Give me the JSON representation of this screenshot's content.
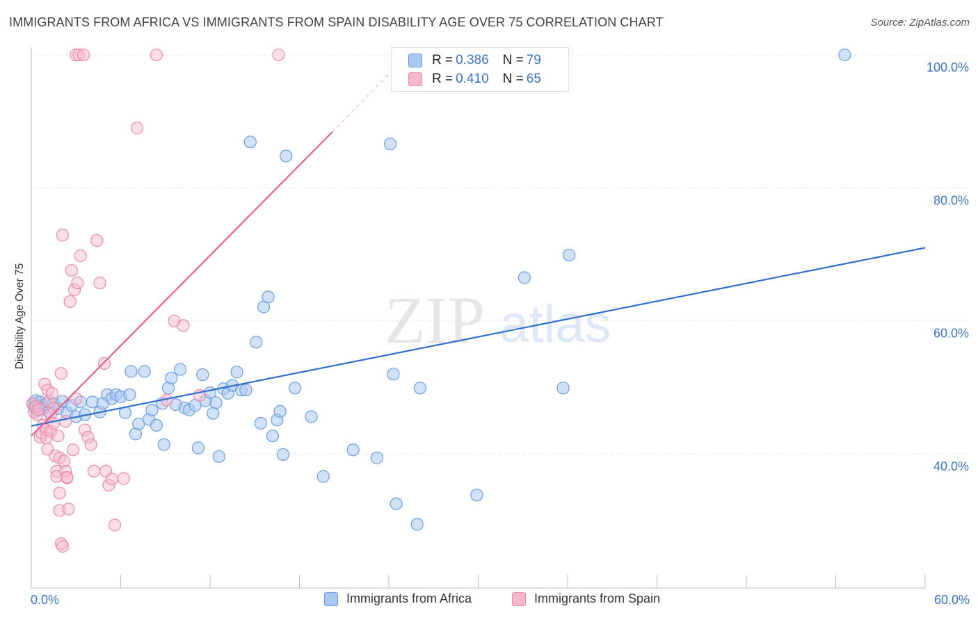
{
  "title": "IMMIGRANTS FROM AFRICA VS IMMIGRANTS FROM SPAIN DISABILITY AGE OVER 75 CORRELATION CHART",
  "source": "Source: ZipAtlas.com",
  "watermark": {
    "zip": "ZIP",
    "atlas": "atlas"
  },
  "legend": {
    "africa": {
      "r_label": "R = ",
      "r_value": "0.386",
      "n_label": "N = ",
      "n_value": "79"
    },
    "spain": {
      "r_label": "R = ",
      "r_value": "0.410",
      "n_label": "N = ",
      "n_value": "65"
    }
  },
  "bottom_legend": {
    "africa": "Immigrants from Africa",
    "spain": "Immigrants from Spain"
  },
  "x_tick_labels": {
    "min": "0.0%",
    "max": "60.0%"
  },
  "colors": {
    "africa_fill": "#a9c8f2",
    "africa_stroke": "#6a9de0",
    "africa_line": "#2c6fd0",
    "spain_fill": "#f7b8cb",
    "spain_stroke": "#ea8aa8",
    "spain_line": "#e8608c",
    "grid": "#e3e3e3",
    "axis": "#bbbbbb"
  },
  "chart_data": {
    "type": "scatter",
    "title": "IMMIGRANTS FROM AFRICA VS IMMIGRANTS FROM SPAIN DISABILITY AGE OVER 75 CORRELATION CHART",
    "xlabel": "",
    "ylabel": "Disability Age Over 75",
    "xlim": [
      0,
      60
    ],
    "ylim": [
      20,
      102
    ],
    "y_ticks": [
      {
        "value": 40,
        "label": "40.0%"
      },
      {
        "value": 60,
        "label": "60.0%"
      },
      {
        "value": 80,
        "label": "80.0%"
      },
      {
        "value": 100,
        "label": "100.0%"
      }
    ],
    "x_ticks": [
      0,
      6,
      12,
      18,
      24,
      30,
      36,
      42,
      48,
      54,
      60
    ],
    "grid": true,
    "series": [
      {
        "name": "Immigrants from Africa",
        "R": 0.386,
        "N": 79,
        "trend": {
          "x": [
            0,
            60
          ],
          "y": [
            44.2,
            71.0
          ]
        },
        "points": [
          [
            0.1,
            47.5
          ],
          [
            0.2,
            47.0
          ],
          [
            0.3,
            48.0
          ],
          [
            0.4,
            46.5
          ],
          [
            0.5,
            47.2
          ],
          [
            0.6,
            47.8
          ],
          [
            0.8,
            46.8
          ],
          [
            1.0,
            47.5
          ],
          [
            1.2,
            46.3
          ],
          [
            1.5,
            47.6
          ],
          [
            1.8,
            46.8
          ],
          [
            2.1,
            47.9
          ],
          [
            2.4,
            46.2
          ],
          [
            2.7,
            47.3
          ],
          [
            3.0,
            45.6
          ],
          [
            3.3,
            47.8
          ],
          [
            3.6,
            45.9
          ],
          [
            4.1,
            47.8
          ],
          [
            4.6,
            46.3
          ],
          [
            4.8,
            47.6
          ],
          [
            5.1,
            48.9
          ],
          [
            5.4,
            48.3
          ],
          [
            5.7,
            48.9
          ],
          [
            6.0,
            48.6
          ],
          [
            6.3,
            46.2
          ],
          [
            6.6,
            48.9
          ],
          [
            6.7,
            52.4
          ],
          [
            7.0,
            43.0
          ],
          [
            7.2,
            44.5
          ],
          [
            7.6,
            52.4
          ],
          [
            7.9,
            45.2
          ],
          [
            8.1,
            46.6
          ],
          [
            8.4,
            44.3
          ],
          [
            8.8,
            47.6
          ],
          [
            8.9,
            41.4
          ],
          [
            9.2,
            49.9
          ],
          [
            9.4,
            51.4
          ],
          [
            9.7,
            47.4
          ],
          [
            10.0,
            52.7
          ],
          [
            10.3,
            46.9
          ],
          [
            10.6,
            46.6
          ],
          [
            11.0,
            47.3
          ],
          [
            11.2,
            40.9
          ],
          [
            11.5,
            51.9
          ],
          [
            11.7,
            48.0
          ],
          [
            12.0,
            49.2
          ],
          [
            12.2,
            46.1
          ],
          [
            12.4,
            47.7
          ],
          [
            12.6,
            39.6
          ],
          [
            12.9,
            49.8
          ],
          [
            13.2,
            49.1
          ],
          [
            13.5,
            50.3
          ],
          [
            13.8,
            52.3
          ],
          [
            14.1,
            49.6
          ],
          [
            14.4,
            49.6
          ],
          [
            14.7,
            86.9
          ],
          [
            15.1,
            56.8
          ],
          [
            15.4,
            44.6
          ],
          [
            15.6,
            62.1
          ],
          [
            15.9,
            63.6
          ],
          [
            16.2,
            42.7
          ],
          [
            16.5,
            45.1
          ],
          [
            16.7,
            46.4
          ],
          [
            16.9,
            39.9
          ],
          [
            17.1,
            84.8
          ],
          [
            17.7,
            49.9
          ],
          [
            18.8,
            45.6
          ],
          [
            19.6,
            36.6
          ],
          [
            21.6,
            40.6
          ],
          [
            23.2,
            39.4
          ],
          [
            24.1,
            86.6
          ],
          [
            24.3,
            52.0
          ],
          [
            24.5,
            32.5
          ],
          [
            25.9,
            29.4
          ],
          [
            26.1,
            49.9
          ],
          [
            29.9,
            33.8
          ],
          [
            33.1,
            66.5
          ],
          [
            35.7,
            49.9
          ],
          [
            36.1,
            69.9
          ],
          [
            54.6,
            100.0
          ]
        ]
      },
      {
        "name": "Immigrants from Spain",
        "R": 0.41,
        "N": 65,
        "trend": {
          "x": [
            0,
            20.2
          ],
          "y": [
            42.7,
            88.4
          ]
        },
        "trend_dashed": {
          "x": [
            20.2,
            24.6
          ],
          "y": [
            88.4,
            98.5
          ]
        },
        "points": [
          [
            0.1,
            47.6
          ],
          [
            0.2,
            46.3
          ],
          [
            0.3,
            47.1
          ],
          [
            0.4,
            45.9
          ],
          [
            0.5,
            46.7
          ],
          [
            0.6,
            42.5
          ],
          [
            0.7,
            43.1
          ],
          [
            0.8,
            44.3
          ],
          [
            0.9,
            50.5
          ],
          [
            1.0,
            43.6
          ],
          [
            1.0,
            42.4
          ],
          [
            1.1,
            49.6
          ],
          [
            1.1,
            40.7
          ],
          [
            1.2,
            47.9
          ],
          [
            1.3,
            45.9
          ],
          [
            1.3,
            43.4
          ],
          [
            1.4,
            49.1
          ],
          [
            1.5,
            44.6
          ],
          [
            1.5,
            46.9
          ],
          [
            1.6,
            39.7
          ],
          [
            1.7,
            37.4
          ],
          [
            1.7,
            36.6
          ],
          [
            1.8,
            42.7
          ],
          [
            1.9,
            39.4
          ],
          [
            1.9,
            34.1
          ],
          [
            1.9,
            31.5
          ],
          [
            2.0,
            26.5
          ],
          [
            2.0,
            52.1
          ],
          [
            2.1,
            26.1
          ],
          [
            2.1,
            72.9
          ],
          [
            2.2,
            38.9
          ],
          [
            2.3,
            37.4
          ],
          [
            2.3,
            44.9
          ],
          [
            2.4,
            36.4
          ],
          [
            2.4,
            36.5
          ],
          [
            2.5,
            31.7
          ],
          [
            2.6,
            62.9
          ],
          [
            2.7,
            67.6
          ],
          [
            2.8,
            40.6
          ],
          [
            2.9,
            64.7
          ],
          [
            3.0,
            48.3
          ],
          [
            3.0,
            100.0
          ],
          [
            3.1,
            65.7
          ],
          [
            3.2,
            100.0
          ],
          [
            3.3,
            69.8
          ],
          [
            3.5,
            100.0
          ],
          [
            3.6,
            43.6
          ],
          [
            3.8,
            42.5
          ],
          [
            4.0,
            41.4
          ],
          [
            4.2,
            37.4
          ],
          [
            4.4,
            72.1
          ],
          [
            4.6,
            65.7
          ],
          [
            4.9,
            53.6
          ],
          [
            5.0,
            37.4
          ],
          [
            5.2,
            35.3
          ],
          [
            5.4,
            36.2
          ],
          [
            5.6,
            29.3
          ],
          [
            6.2,
            36.3
          ],
          [
            7.1,
            89.0
          ],
          [
            8.4,
            100.0
          ],
          [
            9.1,
            48.1
          ],
          [
            9.6,
            60.0
          ],
          [
            10.2,
            59.3
          ],
          [
            11.3,
            48.8
          ],
          [
            16.6,
            100.0
          ]
        ]
      }
    ]
  }
}
